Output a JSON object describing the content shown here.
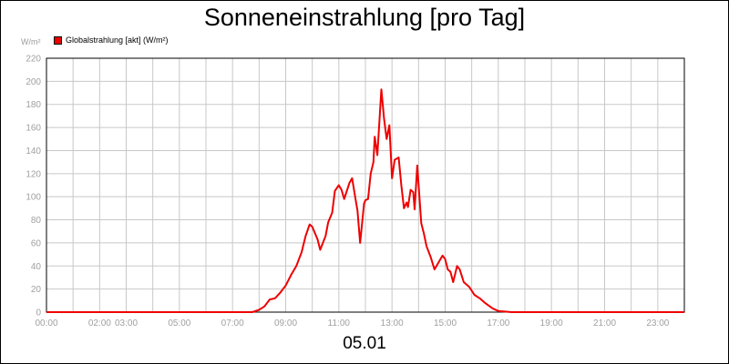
{
  "chart_data": {
    "type": "line",
    "title": "Sonneneinstrahlung [pro Tag]",
    "xlabel": "05.01",
    "y_unit": "W/m²",
    "ylim": [
      0,
      220
    ],
    "xlim": [
      0,
      24
    ],
    "grid": true,
    "legend_position": "top-left",
    "y_ticks": [
      "0",
      "20",
      "40",
      "60",
      "80",
      "100",
      "120",
      "140",
      "160",
      "180",
      "200",
      "220"
    ],
    "x_ticks": [
      {
        "x": 0,
        "label": "00:00"
      },
      {
        "x": 2,
        "label": "02:00"
      },
      {
        "x": 3,
        "label": "03:00"
      },
      {
        "x": 5,
        "label": "05:00"
      },
      {
        "x": 7,
        "label": "07:00"
      },
      {
        "x": 9,
        "label": "09:00"
      },
      {
        "x": 11,
        "label": "11:00"
      },
      {
        "x": 13,
        "label": "13:00"
      },
      {
        "x": 15,
        "label": "15:00"
      },
      {
        "x": 17,
        "label": "17:00"
      },
      {
        "x": 19,
        "label": "19:00"
      },
      {
        "x": 21,
        "label": "21:00"
      },
      {
        "x": 23,
        "label": "23:00"
      }
    ],
    "series": [
      {
        "name": "Globalstrahlung [akt] (W/m²)",
        "color": "#ee0000",
        "x": [
          0,
          7.75,
          8.0,
          8.2,
          8.4,
          8.6,
          8.8,
          9.0,
          9.2,
          9.4,
          9.6,
          9.75,
          9.9,
          10.0,
          10.2,
          10.3,
          10.5,
          10.6,
          10.75,
          10.85,
          11.0,
          11.1,
          11.2,
          11.4,
          11.5,
          11.6,
          11.7,
          11.8,
          11.95,
          12.0,
          12.1,
          12.2,
          12.3,
          12.35,
          12.45,
          12.6,
          12.7,
          12.8,
          12.9,
          13.0,
          13.1,
          13.25,
          13.35,
          13.45,
          13.55,
          13.6,
          13.7,
          13.8,
          13.85,
          13.95,
          14.1,
          14.2,
          14.3,
          14.45,
          14.6,
          14.75,
          14.9,
          15.0,
          15.1,
          15.2,
          15.3,
          15.45,
          15.55,
          15.7,
          15.9,
          16.1,
          16.3,
          16.5,
          16.8,
          17.0,
          17.5,
          24
        ],
        "values": [
          0,
          0,
          2,
          5,
          11,
          12,
          17,
          23,
          32,
          40,
          52,
          66,
          76,
          74,
          63,
          54,
          66,
          78,
          86,
          105,
          110,
          106,
          98,
          112,
          116,
          102,
          88,
          60,
          94,
          97,
          98,
          120,
          130,
          152,
          136,
          193,
          168,
          150,
          162,
          116,
          132,
          134,
          110,
          90,
          95,
          91,
          106,
          104,
          89,
          127,
          77,
          68,
          57,
          48,
          37,
          43,
          49,
          46,
          37,
          35,
          26,
          40,
          37,
          26,
          22,
          15,
          12,
          8,
          3,
          1,
          0,
          0
        ]
      }
    ]
  }
}
